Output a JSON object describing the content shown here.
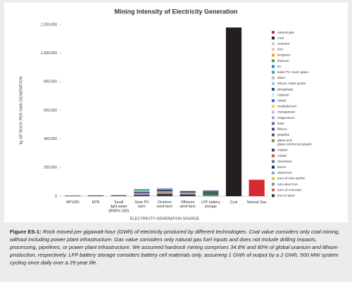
{
  "chart_data": {
    "type": "bar",
    "stacked": true,
    "title": "Mining Intensity of Electricity Generation",
    "xlabel": "ELECTRICITY GENERATION SOURCE",
    "ylabel": "kg OF ROCK PER GWh GENERATION",
    "categories": [
      "AP1000",
      "EPR",
      "Small light-water (BWRX-300)",
      "Solar PV farm",
      "Onshore wind farm",
      "Offshore wind farm",
      "LFP battery storage",
      "Coal",
      "Natural Gas"
    ],
    "ylim": [
      0,
      1200000
    ],
    "yticks": [
      0,
      {
        "value": 200000,
        "label": "200,000"
      },
      {
        "value": 400000,
        "label": "400,000"
      },
      {
        "value": 600000,
        "label": "600,000"
      },
      {
        "value": 800000,
        "label": "800,000"
      },
      {
        "value": 1000000,
        "label": "1,000,000"
      },
      {
        "value": 1200000,
        "label": "1,200,000"
      }
    ],
    "grid": false,
    "legend": "right",
    "series": [
      {
        "name": "natural gas",
        "color": "#d62b2f",
        "values": [
          0,
          0,
          0,
          0,
          0,
          0,
          0,
          0,
          115000
        ]
      },
      {
        "name": "coal",
        "color": "#231f20",
        "values": [
          0,
          0,
          0,
          0,
          0,
          0,
          0,
          1180000,
          0
        ]
      },
      {
        "name": "uranium",
        "color": "#c8c8c8",
        "values": [
          1000,
          1000,
          1000,
          0,
          0,
          0,
          0,
          0,
          0
        ]
      },
      {
        "name": "zinc",
        "color": "#f2b8c0",
        "values": [
          0,
          0,
          0,
          2000,
          3000,
          2000,
          0,
          0,
          0
        ]
      },
      {
        "name": "tungsten",
        "color": "#f39a2b",
        "values": [
          0,
          0,
          0,
          0,
          0,
          0,
          0,
          0,
          0
        ]
      },
      {
        "name": "titanium",
        "color": "#3aa54a",
        "values": [
          0,
          0,
          0,
          0,
          0,
          0,
          0,
          0,
          0
        ]
      },
      {
        "name": "tin",
        "color": "#2e7fc1",
        "values": [
          0,
          0,
          0,
          0,
          0,
          0,
          0,
          0,
          0
        ]
      },
      {
        "name": "solar PV cover glass",
        "color": "#36a9a2",
        "values": [
          0,
          0,
          0,
          10000,
          0,
          0,
          0,
          0,
          0
        ]
      },
      {
        "name": "silver",
        "color": "#b9bcc0",
        "values": [
          0,
          0,
          0,
          3000,
          0,
          0,
          0,
          0,
          0
        ]
      },
      {
        "name": "silicon, solar-grade",
        "color": "#9fc5e8",
        "values": [
          0,
          0,
          0,
          5000,
          0,
          0,
          0,
          0,
          0
        ]
      },
      {
        "name": "phosphate",
        "color": "#1f5f6b",
        "values": [
          0,
          0,
          0,
          0,
          0,
          0,
          2000,
          0,
          0
        ]
      },
      {
        "name": "niobium",
        "color": "#d9e6f2",
        "values": [
          0,
          0,
          0,
          0,
          0,
          0,
          0,
          0,
          0
        ]
      },
      {
        "name": "nickel",
        "color": "#3f6fb5",
        "values": [
          0,
          0,
          0,
          0,
          3000,
          0,
          0,
          0,
          0
        ]
      },
      {
        "name": "molybdenum",
        "color": "#f4d03f",
        "values": [
          0,
          0,
          0,
          0,
          0,
          0,
          0,
          0,
          0
        ]
      },
      {
        "name": "manganese",
        "color": "#c9b8dc",
        "values": [
          0,
          0,
          0,
          0,
          2000,
          1000,
          0,
          0,
          0
        ]
      },
      {
        "name": "magnesium",
        "color": "#a99fcf",
        "values": [
          0,
          0,
          0,
          0,
          0,
          0,
          0,
          0,
          0
        ]
      },
      {
        "name": "lead",
        "color": "#7f5fa8",
        "values": [
          0,
          0,
          0,
          0,
          0,
          0,
          0,
          0,
          0
        ]
      },
      {
        "name": "lithium",
        "color": "#5b3f8c",
        "values": [
          0,
          0,
          0,
          0,
          0,
          0,
          5000,
          0,
          0
        ]
      },
      {
        "name": "graphite",
        "color": "#3d6b3a",
        "values": [
          0,
          0,
          0,
          0,
          0,
          0,
          20000,
          0,
          0
        ]
      },
      {
        "name": "glass and\nglass-reinforced plastic",
        "color": "#8c8a3a",
        "values": [
          0,
          0,
          0,
          0,
          5000,
          2000,
          0,
          0,
          0
        ]
      },
      {
        "name": "copper",
        "color": "#28406e",
        "values": [
          0,
          0,
          0,
          8000,
          10000,
          8000,
          5000,
          0,
          0
        ]
      },
      {
        "name": "cobalt",
        "color": "#c0662b",
        "values": [
          0,
          0,
          0,
          0,
          0,
          0,
          0,
          0,
          0
        ]
      },
      {
        "name": "chromium",
        "color": "#5f7386",
        "values": [
          0,
          0,
          0,
          0,
          2000,
          2000,
          0,
          0,
          0
        ]
      },
      {
        "name": "boron",
        "color": "#1d2b4f",
        "values": [
          0,
          0,
          0,
          0,
          0,
          0,
          0,
          0,
          0
        ]
      },
      {
        "name": "aluminum",
        "color": "#7fa7d6",
        "values": [
          0,
          0,
          0,
          10000,
          3000,
          3000,
          5000,
          0,
          0
        ]
      },
      {
        "name": "sum of rare earths",
        "color": "#e8c330",
        "values": [
          0,
          0,
          0,
          0,
          2000,
          3000,
          0,
          0,
          0
        ]
      },
      {
        "name": "non-steel iron",
        "color": "#8e8e8e",
        "values": [
          0,
          0,
          0,
          0,
          5000,
          3000,
          0,
          0,
          0
        ]
      },
      {
        "name": "sum of concrete",
        "color": "#c96a5c",
        "values": [
          3000,
          4000,
          5000,
          5000,
          8000,
          3000,
          0,
          0,
          0
        ]
      },
      {
        "name": "iron in steel",
        "color": "#2a3a5a",
        "values": [
          2000,
          2500,
          2500,
          8000,
          15000,
          12000,
          3000,
          0,
          0
        ]
      }
    ]
  },
  "caption": {
    "label": "Figure ES-1:",
    "text": "Rock moved per gigawatt-hour (GWh) of electricity produced by different technologies. Coal value considers only coal mining, without including power plant infrastructure. Gas value considers only natural gas fuel inputs and does not include drilling impacts, processing, pipelines, or power plant infrastructure. We assumed hardrock mining comprises 34.8% and 60% of global uranium and lithium production, respectively. LFP battery storage considers battery cell materials only, assuming 1 GWh of output by a 2 GWh, 500 MW system cycling once daily over a 25-year life."
  }
}
